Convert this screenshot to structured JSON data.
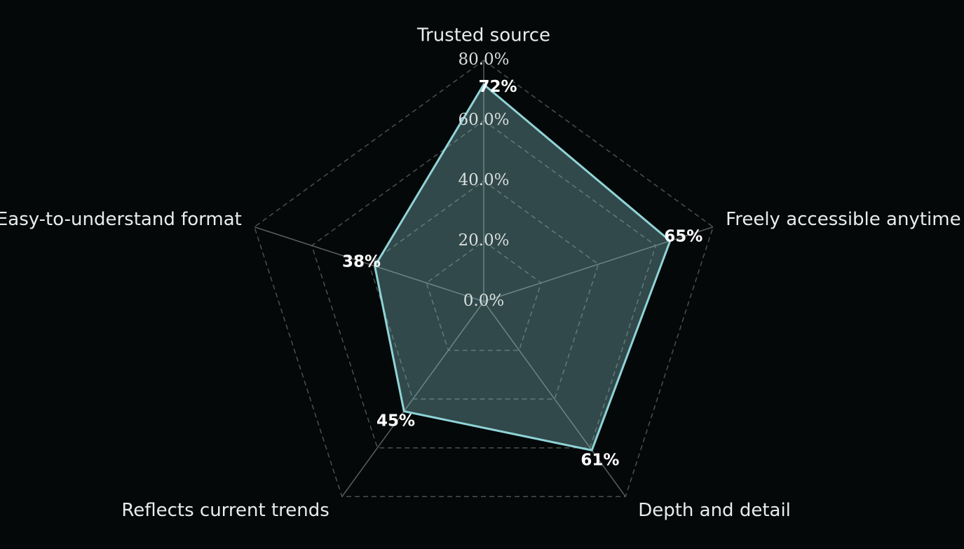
{
  "chart_data": {
    "type": "radar",
    "categories": [
      "Trusted source",
      "Freely accessible anytime",
      "Depth and detail",
      "Reflects current trends",
      "Easy-to-understand format"
    ],
    "values": [
      72,
      65,
      61,
      45,
      38
    ],
    "value_labels": [
      "72%",
      "65%",
      "61%",
      "45%",
      "38%"
    ],
    "color": "#8fd3d8",
    "ylim": [
      0,
      80
    ],
    "yticks": [
      {
        "value": 0,
        "label": "0.0%"
      },
      {
        "value": 20,
        "label": "20.0%"
      },
      {
        "value": 40,
        "label": "40.0%"
      },
      {
        "value": 60,
        "label": "60.0%"
      },
      {
        "value": 80,
        "label": "80.0%"
      }
    ],
    "grid": true
  }
}
